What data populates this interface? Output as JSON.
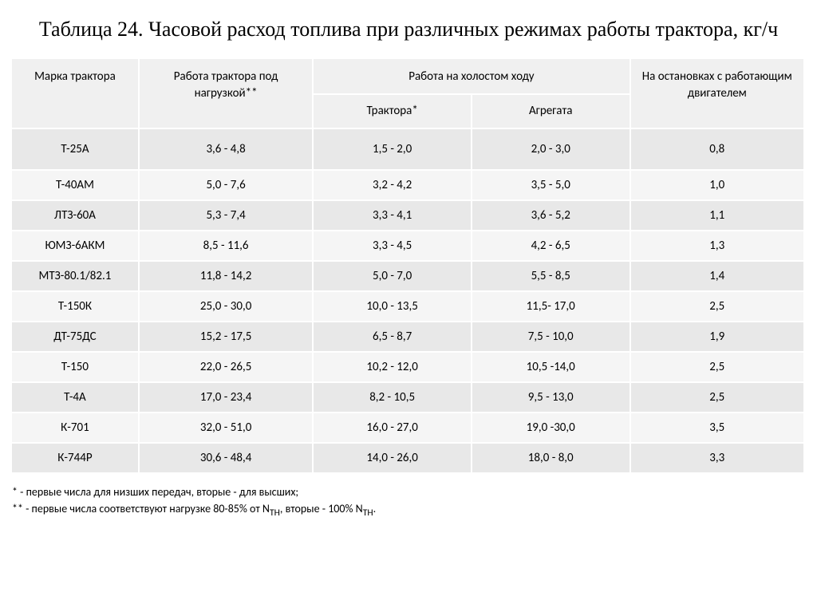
{
  "title": "Таблица 24.  Часовой расход топлива при различных режимах работы трактора, кг/ч",
  "headers": {
    "brand": "Марка трактора",
    "under_load": "Работа трактора под нагрузкой**",
    "idle_group": "Работа на  холостом  ходу",
    "idle_tractor": "Трактора*",
    "idle_aggregate": "Агрегата",
    "stopped": "На остановках с работающим двигателем"
  },
  "rows": [
    {
      "brand": "Т-25А",
      "load": "3,6 - 4,8",
      "idle_t": "1,5 - 2,0",
      "idle_a": "2,0 - 3,0",
      "stop": "0,8"
    },
    {
      "brand": "Т-40АМ",
      "load": "5,0 - 7,6",
      "idle_t": "3,2 - 4,2",
      "idle_a": "3,5 - 5,0",
      "stop": "1,0"
    },
    {
      "brand": "ЛТЗ-60А",
      "load": "5,3 - 7,4",
      "idle_t": "3,3 - 4,1",
      "idle_a": "3,6 - 5,2",
      "stop": "1,1"
    },
    {
      "brand": "ЮМЗ-6АКМ",
      "load": "8,5 - 11,6",
      "idle_t": "3,3 - 4,5",
      "idle_a": "4,2 - 6,5",
      "stop": "1,3"
    },
    {
      "brand": "МТЗ-80.1/82.1",
      "load": "11,8 - 14,2",
      "idle_t": "5,0 - 7,0",
      "idle_a": "5,5 - 8,5",
      "stop": "1,4"
    },
    {
      "brand": "Т-150К",
      "load": "25,0 - 30,0",
      "idle_t": "10,0 - 13,5",
      "idle_a": "11,5- 17,0",
      "stop": "2,5"
    },
    {
      "brand": "ДТ-75ДС",
      "load": "15,2 - 17,5",
      "idle_t": "6,5 - 8,7",
      "idle_a": "7,5 - 10,0",
      "stop": "1,9"
    },
    {
      "brand": "Т-150",
      "load": "22,0 - 26,5",
      "idle_t": "10,2 - 12,0",
      "idle_a": "10,5 -14,0",
      "stop": "2,5"
    },
    {
      "brand": "Т-4А",
      "load": "17,0 - 23,4",
      "idle_t": "8,2 - 10,5",
      "idle_a": "9,5 - 13,0",
      "stop": "2,5"
    },
    {
      "brand": "К-701",
      "load": "32,0 - 51,0",
      "idle_t": "16,0 - 27,0",
      "idle_a": "19,0 -30,0",
      "stop": "3,5"
    },
    {
      "brand": "К-744Р",
      "load": "30,6 - 48,4",
      "idle_t": "14,0 - 26,0",
      "idle_a": "18,0 - 8,0",
      "stop": "3,3"
    }
  ],
  "footnotes": {
    "note1": "* - первые числа для низших передач, вторые - для высших;",
    "note2_prefix": "** - первые числа соответствуют нагрузке 80-85% от N",
    "note2_sub1": "ТН",
    "note2_mid": ", вторые - 100% N",
    "note2_sub2": "ТН",
    "note2_suffix": "."
  },
  "styling": {
    "background_color": "#ffffff",
    "header_bg": "#f0f0f0",
    "row_odd_bg": "#e8e8e8",
    "row_even_bg": "#f5f5f5",
    "text_color": "#000000",
    "title_fontsize": 26,
    "table_fontsize": 15,
    "footnote_fontsize": 14,
    "title_font": "Times New Roman",
    "table_font": "Calibri"
  }
}
